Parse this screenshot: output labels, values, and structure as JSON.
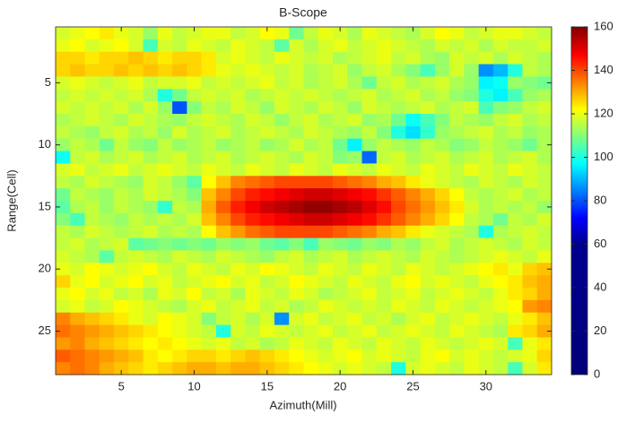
{
  "chart_data": {
    "type": "heatmap",
    "title": "B-Scope",
    "xlabel": "Azimuth(Mill)",
    "ylabel": "Range(Cell)",
    "x": [
      1,
      2,
      3,
      4,
      5,
      6,
      7,
      8,
      9,
      10,
      11,
      12,
      13,
      14,
      15,
      16,
      17,
      18,
      19,
      20,
      21,
      22,
      23,
      24,
      25,
      26,
      27,
      28,
      29,
      30,
      31,
      32,
      33,
      34
    ],
    "y": [
      1,
      2,
      3,
      4,
      5,
      6,
      7,
      8,
      9,
      10,
      11,
      12,
      13,
      14,
      15,
      16,
      17,
      18,
      19,
      20,
      21,
      22,
      23,
      24,
      25,
      26,
      27,
      28
    ],
    "xlim": [
      0.5,
      34.5
    ],
    "ylim": [
      28.5,
      0.5
    ],
    "xticks": [
      5,
      10,
      15,
      20,
      25,
      30
    ],
    "yticks": [
      5,
      10,
      15,
      20,
      25
    ],
    "clim": [
      0,
      160
    ],
    "cticks": [
      0,
      20,
      40,
      60,
      80,
      100,
      120,
      140,
      160
    ],
    "colormap": [
      [
        0,
        "#00007a"
      ],
      [
        60,
        "#00008f"
      ],
      [
        72,
        "#0000ff"
      ],
      [
        97,
        "#00ffff"
      ],
      [
        122,
        "#ffff00"
      ],
      [
        147,
        "#ff0000"
      ],
      [
        160,
        "#7f0000"
      ]
    ],
    "values": [
      [
        118,
        120,
        122,
        124,
        120,
        118,
        112,
        120,
        116,
        118,
        120,
        120,
        116,
        118,
        122,
        120,
        108,
        116,
        120,
        118,
        114,
        120,
        118,
        116,
        114,
        118,
        122,
        120,
        116,
        118,
        120,
        120,
        118,
        116
      ],
      [
        120,
        122,
        118,
        120,
        122,
        118,
        104,
        118,
        116,
        120,
        118,
        116,
        120,
        118,
        116,
        106,
        118,
        114,
        118,
        120,
        116,
        118,
        120,
        118,
        116,
        114,
        118,
        116,
        118,
        114,
        118,
        116,
        116,
        118
      ],
      [
        126,
        126,
        124,
        126,
        126,
        128,
        126,
        124,
        126,
        126,
        124,
        118,
        120,
        118,
        116,
        120,
        118,
        116,
        118,
        114,
        116,
        118,
        120,
        116,
        118,
        114,
        112,
        118,
        116,
        118,
        114,
        118,
        116,
        114
      ],
      [
        126,
        128,
        126,
        126,
        128,
        126,
        128,
        126,
        128,
        126,
        124,
        120,
        118,
        120,
        118,
        116,
        118,
        114,
        116,
        118,
        112,
        116,
        118,
        114,
        110,
        104,
        112,
        118,
        112,
        86,
        90,
        100,
        116,
        114
      ],
      [
        118,
        120,
        118,
        116,
        118,
        120,
        116,
        118,
        118,
        120,
        116,
        118,
        116,
        118,
        120,
        116,
        118,
        114,
        116,
        118,
        114,
        108,
        116,
        118,
        114,
        116,
        118,
        114,
        112,
        96,
        98,
        112,
        110,
        108
      ],
      [
        116,
        118,
        116,
        118,
        116,
        118,
        114,
        100,
        108,
        116,
        118,
        116,
        118,
        114,
        116,
        118,
        116,
        118,
        116,
        114,
        116,
        118,
        114,
        116,
        118,
        114,
        116,
        112,
        110,
        100,
        96,
        104,
        112,
        114
      ],
      [
        118,
        116,
        118,
        116,
        118,
        114,
        118,
        112,
        80,
        110,
        116,
        114,
        118,
        116,
        112,
        118,
        116,
        114,
        118,
        116,
        112,
        118,
        116,
        114,
        116,
        118,
        114,
        116,
        118,
        104,
        110,
        112,
        116,
        118
      ],
      [
        114,
        116,
        118,
        116,
        114,
        118,
        116,
        114,
        112,
        116,
        118,
        116,
        114,
        118,
        116,
        112,
        116,
        118,
        114,
        116,
        118,
        112,
        114,
        108,
        98,
        104,
        110,
        116,
        114,
        112,
        116,
        118,
        114,
        116
      ],
      [
        116,
        114,
        112,
        116,
        118,
        114,
        116,
        112,
        118,
        114,
        116,
        118,
        114,
        116,
        118,
        116,
        114,
        118,
        116,
        114,
        112,
        116,
        110,
        100,
        94,
        102,
        112,
        114,
        116,
        118,
        114,
        116,
        112,
        114
      ],
      [
        112,
        116,
        114,
        108,
        116,
        112,
        110,
        116,
        112,
        114,
        116,
        112,
        114,
        116,
        112,
        114,
        118,
        114,
        116,
        108,
        96,
        112,
        116,
        114,
        112,
        116,
        114,
        110,
        112,
        116,
        114,
        112,
        108,
        114
      ],
      [
        98,
        116,
        118,
        114,
        116,
        118,
        114,
        116,
        118,
        114,
        116,
        118,
        114,
        116,
        118,
        116,
        114,
        118,
        116,
        110,
        112,
        82,
        116,
        118,
        114,
        116,
        118,
        114,
        116,
        118,
        114,
        116,
        118,
        114
      ],
      [
        118,
        120,
        116,
        118,
        120,
        116,
        118,
        120,
        118,
        116,
        120,
        118,
        116,
        120,
        118,
        116,
        120,
        118,
        116,
        120,
        118,
        116,
        120,
        118,
        116,
        120,
        118,
        116,
        120,
        118,
        116,
        120,
        118,
        116
      ],
      [
        116,
        114,
        118,
        116,
        114,
        112,
        118,
        116,
        112,
        106,
        122,
        128,
        134,
        136,
        138,
        140,
        140,
        140,
        140,
        138,
        136,
        134,
        130,
        128,
        124,
        120,
        118,
        116,
        114,
        118,
        116,
        114,
        118,
        116
      ],
      [
        108,
        116,
        114,
        112,
        116,
        114,
        118,
        116,
        114,
        110,
        128,
        134,
        140,
        144,
        146,
        148,
        150,
        152,
        152,
        150,
        148,
        146,
        142,
        138,
        134,
        130,
        126,
        122,
        116,
        114,
        116,
        118,
        114,
        116
      ],
      [
        106,
        114,
        116,
        112,
        116,
        114,
        112,
        102,
        116,
        114,
        130,
        138,
        144,
        148,
        152,
        154,
        156,
        158,
        158,
        156,
        154,
        150,
        146,
        140,
        136,
        132,
        128,
        124,
        118,
        114,
        116,
        114,
        116,
        112
      ],
      [
        110,
        104,
        116,
        114,
        112,
        116,
        114,
        116,
        114,
        118,
        128,
        134,
        140,
        144,
        146,
        148,
        150,
        152,
        152,
        150,
        148,
        146,
        142,
        138,
        134,
        130,
        126,
        122,
        116,
        114,
        108,
        116,
        114,
        118
      ],
      [
        116,
        114,
        118,
        116,
        114,
        116,
        118,
        114,
        116,
        114,
        122,
        128,
        132,
        136,
        138,
        140,
        140,
        140,
        140,
        138,
        136,
        134,
        130,
        128,
        124,
        120,
        118,
        116,
        114,
        100,
        114,
        116,
        118,
        116
      ],
      [
        116,
        118,
        114,
        116,
        118,
        106,
        108,
        110,
        108,
        110,
        108,
        112,
        110,
        112,
        108,
        106,
        110,
        104,
        112,
        110,
        108,
        112,
        110,
        114,
        112,
        116,
        118,
        114,
        116,
        118,
        116,
        114,
        118,
        116
      ],
      [
        118,
        116,
        114,
        106,
        116,
        118,
        116,
        114,
        118,
        116,
        114,
        118,
        116,
        114,
        112,
        116,
        118,
        114,
        116,
        118,
        114,
        116,
        118,
        116,
        114,
        118,
        116,
        114,
        116,
        118,
        120,
        118,
        116,
        120
      ],
      [
        120,
        118,
        122,
        120,
        118,
        120,
        122,
        118,
        116,
        120,
        118,
        116,
        120,
        118,
        122,
        120,
        118,
        116,
        120,
        118,
        116,
        120,
        118,
        116,
        120,
        118,
        116,
        118,
        120,
        122,
        124,
        120,
        126,
        128
      ],
      [
        126,
        120,
        122,
        118,
        120,
        122,
        118,
        120,
        116,
        118,
        120,
        122,
        118,
        120,
        116,
        118,
        122,
        120,
        118,
        116,
        120,
        118,
        116,
        120,
        122,
        118,
        120,
        118,
        116,
        120,
        122,
        124,
        128,
        130
      ],
      [
        120,
        122,
        118,
        120,
        116,
        118,
        114,
        120,
        118,
        122,
        116,
        118,
        114,
        120,
        118,
        116,
        120,
        118,
        114,
        116,
        118,
        120,
        116,
        118,
        120,
        116,
        118,
        120,
        118,
        116,
        120,
        124,
        126,
        130
      ],
      [
        118,
        120,
        116,
        118,
        122,
        120,
        118,
        116,
        114,
        118,
        120,
        116,
        118,
        120,
        116,
        118,
        114,
        116,
        120,
        118,
        116,
        118,
        116,
        120,
        118,
        116,
        120,
        118,
        116,
        118,
        120,
        122,
        132,
        134
      ],
      [
        134,
        130,
        128,
        126,
        124,
        120,
        118,
        122,
        120,
        118,
        110,
        116,
        118,
        114,
        118,
        86,
        118,
        120,
        116,
        118,
        120,
        116,
        118,
        114,
        118,
        120,
        116,
        118,
        120,
        118,
        116,
        120,
        124,
        128
      ],
      [
        136,
        134,
        132,
        130,
        128,
        126,
        124,
        122,
        120,
        118,
        116,
        100,
        118,
        116,
        120,
        118,
        116,
        118,
        120,
        116,
        118,
        120,
        116,
        118,
        120,
        118,
        116,
        120,
        118,
        116,
        114,
        124,
        126,
        130
      ],
      [
        132,
        134,
        130,
        128,
        126,
        124,
        122,
        124,
        122,
        120,
        118,
        120,
        116,
        118,
        114,
        116,
        120,
        118,
        116,
        120,
        118,
        116,
        120,
        118,
        116,
        120,
        118,
        116,
        118,
        120,
        118,
        104,
        120,
        124
      ],
      [
        138,
        136,
        134,
        132,
        130,
        128,
        124,
        122,
        124,
        126,
        126,
        124,
        126,
        128,
        126,
        124,
        122,
        120,
        118,
        120,
        122,
        118,
        120,
        118,
        116,
        120,
        122,
        118,
        120,
        118,
        116,
        118,
        120,
        126
      ],
      [
        134,
        136,
        134,
        130,
        128,
        126,
        124,
        126,
        128,
        130,
        130,
        128,
        130,
        130,
        128,
        126,
        124,
        122,
        120,
        118,
        120,
        118,
        116,
        100,
        118,
        120,
        118,
        116,
        120,
        118,
        116,
        104,
        118,
        124
      ]
    ]
  }
}
